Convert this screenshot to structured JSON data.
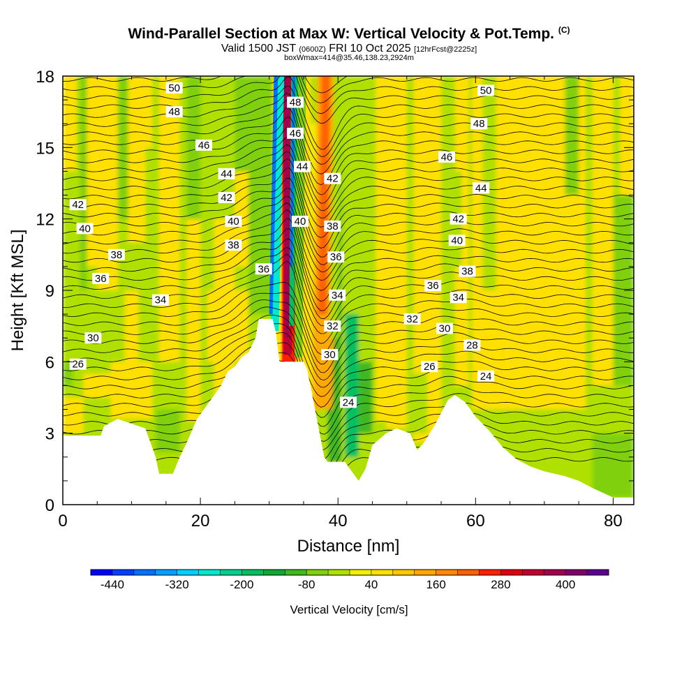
{
  "header": {
    "title": "Wind-Parallel Section at Max W: Vertical Velocity & Pot.Temp.",
    "copyright": "(C)",
    "valid_prefix": "Valid 1500 JST",
    "utc_time": "(0600Z)",
    "valid_date": "FRI 10 Oct 2025",
    "forecast": "[12hrFcst@2225z]",
    "box_info": "boxWmax=414@35.46,138.23,2924m"
  },
  "chart_data": {
    "type": "heatmap",
    "xlabel": "Distance [nm]",
    "ylabel": "Height [Kft MSL]",
    "xlim": [
      0,
      83
    ],
    "ylim": [
      0,
      18
    ],
    "x_ticks": [
      0,
      20,
      40,
      60,
      80
    ],
    "y_ticks": [
      0,
      3,
      6,
      9,
      12,
      15,
      18
    ],
    "colorbar": {
      "label": "Vertical Velocity [cm/s]",
      "min": -480,
      "max": 480,
      "tick_values": [
        -440,
        -320,
        -200,
        -80,
        40,
        160,
        280,
        400
      ],
      "tick_labels": [
        "-440",
        "-320",
        "-200",
        "-80",
        "40",
        "160",
        "280",
        "400"
      ],
      "colors": [
        "#0000ff",
        "#0040ff",
        "#0070ff",
        "#00a0ff",
        "#00d0ff",
        "#00e8d0",
        "#00d090",
        "#00c060",
        "#10a830",
        "#40b820",
        "#80d010",
        "#b0e000",
        "#f0f000",
        "#ffe000",
        "#ffc800",
        "#ffa800",
        "#ff8800",
        "#ff6000",
        "#ff2000",
        "#e00010",
        "#c00030",
        "#a00050",
        "#800070",
        "#600090"
      ]
    },
    "terrain_kft": [
      [
        0,
        2.9
      ],
      [
        5.5,
        2.9
      ],
      [
        6,
        3.3
      ],
      [
        8,
        3.6
      ],
      [
        12,
        3.2
      ],
      [
        13.5,
        2.0
      ],
      [
        14,
        1.3
      ],
      [
        16,
        1.3
      ],
      [
        17,
        2.0
      ],
      [
        18,
        2.6
      ],
      [
        19.5,
        3.6
      ],
      [
        21,
        4.2
      ],
      [
        23,
        5.0
      ],
      [
        24,
        5.6
      ],
      [
        25,
        5.8
      ],
      [
        26,
        6.2
      ],
      [
        27,
        6.4
      ],
      [
        28,
        7.0
      ],
      [
        28.5,
        7.8
      ],
      [
        30.5,
        7.8
      ],
      [
        31,
        7.2
      ],
      [
        31.5,
        6.0
      ],
      [
        35,
        6.0
      ],
      [
        35.5,
        5.7
      ],
      [
        36,
        5.0
      ],
      [
        37,
        3.5
      ],
      [
        38,
        2.0
      ],
      [
        38.5,
        1.8
      ],
      [
        41,
        1.8
      ],
      [
        43,
        1.0
      ],
      [
        44,
        1.5
      ],
      [
        45,
        2.5
      ],
      [
        47,
        3.0
      ],
      [
        48.5,
        3.2
      ],
      [
        50.5,
        3.0
      ],
      [
        51.5,
        2.3
      ],
      [
        52.5,
        2.6
      ],
      [
        54,
        3.3
      ],
      [
        56,
        4.4
      ],
      [
        57,
        4.6
      ],
      [
        58.5,
        4.3
      ],
      [
        60,
        3.7
      ],
      [
        62,
        3.1
      ],
      [
        64,
        2.4
      ],
      [
        66,
        1.9
      ],
      [
        68,
        1.6
      ],
      [
        70,
        1.4
      ],
      [
        73,
        1.2
      ],
      [
        75,
        1.0
      ],
      [
        77,
        0.7
      ],
      [
        80,
        0.3
      ],
      [
        83,
        0.3
      ]
    ],
    "theta_contour_labels": [
      {
        "text": "50",
        "x": 16.2,
        "y": 17.5
      },
      {
        "text": "48",
        "x": 16.2,
        "y": 16.5
      },
      {
        "text": "46",
        "x": 20.5,
        "y": 15.1
      },
      {
        "text": "44",
        "x": 23.8,
        "y": 13.9
      },
      {
        "text": "42",
        "x": 23.8,
        "y": 12.9
      },
      {
        "text": "42",
        "x": 2.2,
        "y": 12.6
      },
      {
        "text": "40",
        "x": 3.2,
        "y": 11.6
      },
      {
        "text": "40",
        "x": 24.8,
        "y": 11.9
      },
      {
        "text": "38",
        "x": 24.8,
        "y": 10.9
      },
      {
        "text": "38",
        "x": 7.8,
        "y": 10.5
      },
      {
        "text": "36",
        "x": 5.5,
        "y": 9.5
      },
      {
        "text": "34",
        "x": 14.2,
        "y": 8.6
      },
      {
        "text": "36",
        "x": 29.2,
        "y": 9.9
      },
      {
        "text": "30",
        "x": 4.4,
        "y": 7.0
      },
      {
        "text": "26",
        "x": 2.2,
        "y": 5.9
      },
      {
        "text": "48",
        "x": 33.8,
        "y": 16.9
      },
      {
        "text": "46",
        "x": 33.8,
        "y": 15.6
      },
      {
        "text": "44",
        "x": 34.8,
        "y": 14.2
      },
      {
        "text": "40",
        "x": 34.5,
        "y": 11.9
      },
      {
        "text": "42",
        "x": 39.2,
        "y": 13.7
      },
      {
        "text": "38",
        "x": 39.2,
        "y": 11.7
      },
      {
        "text": "36",
        "x": 39.7,
        "y": 10.4
      },
      {
        "text": "34",
        "x": 39.9,
        "y": 8.8
      },
      {
        "text": "32",
        "x": 39.2,
        "y": 7.5
      },
      {
        "text": "30",
        "x": 38.8,
        "y": 6.3
      },
      {
        "text": "24",
        "x": 41.5,
        "y": 4.3
      },
      {
        "text": "50",
        "x": 61.5,
        "y": 17.4
      },
      {
        "text": "48",
        "x": 60.5,
        "y": 16.0
      },
      {
        "text": "46",
        "x": 55.8,
        "y": 14.6
      },
      {
        "text": "44",
        "x": 60.8,
        "y": 13.3
      },
      {
        "text": "42",
        "x": 57.5,
        "y": 12.0
      },
      {
        "text": "40",
        "x": 57.3,
        "y": 11.1
      },
      {
        "text": "38",
        "x": 58.8,
        "y": 9.8
      },
      {
        "text": "36",
        "x": 53.8,
        "y": 9.2
      },
      {
        "text": "34",
        "x": 57.5,
        "y": 8.7
      },
      {
        "text": "32",
        "x": 50.8,
        "y": 7.8
      },
      {
        "text": "30",
        "x": 55.5,
        "y": 7.4
      },
      {
        "text": "28",
        "x": 59.5,
        "y": 6.7
      },
      {
        "text": "26",
        "x": 53.3,
        "y": 5.8
      },
      {
        "text": "24",
        "x": 61.5,
        "y": 5.4
      }
    ]
  }
}
